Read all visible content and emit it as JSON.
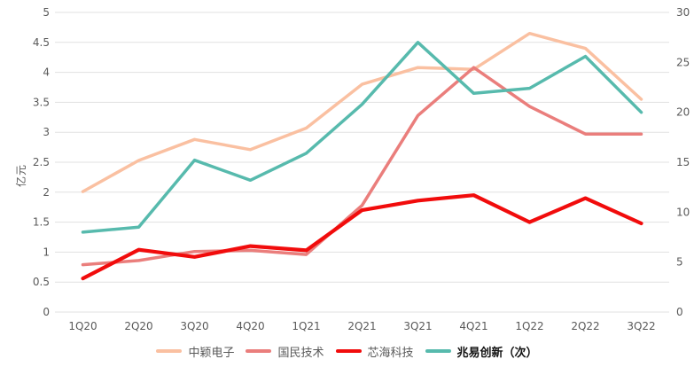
{
  "chart_data": {
    "type": "line",
    "categories": [
      "1Q20",
      "2Q20",
      "3Q20",
      "4Q20",
      "1Q21",
      "2Q21",
      "3Q21",
      "4Q21",
      "1Q22",
      "2Q22",
      "3Q22"
    ],
    "series": [
      {
        "name": "中颖电子",
        "axis": "left",
        "color": "#FAC0A1",
        "line_width": 3.5,
        "bold_legend": false,
        "values": [
          2.01,
          2.53,
          2.88,
          2.71,
          3.07,
          3.8,
          4.08,
          4.05,
          4.65,
          4.4,
          3.55
        ]
      },
      {
        "name": "国民技术",
        "axis": "left",
        "color": "#EA7E7C",
        "line_width": 3.5,
        "bold_legend": false,
        "values": [
          0.79,
          0.86,
          1.01,
          1.03,
          0.96,
          1.78,
          3.28,
          4.08,
          3.43,
          2.97,
          2.97
        ]
      },
      {
        "name": "芯海科技",
        "axis": "left",
        "color": "#F10C0C",
        "line_width": 4.2,
        "bold_legend": false,
        "values": [
          0.56,
          1.04,
          0.92,
          1.1,
          1.03,
          1.7,
          1.86,
          1.95,
          1.5,
          1.9,
          1.48
        ]
      },
      {
        "name": "兆易创新（次）",
        "axis": "right",
        "color": "#57BAAD",
        "line_width": 3.5,
        "bold_legend": true,
        "values": [
          8.0,
          8.5,
          15.2,
          13.2,
          15.9,
          20.8,
          27.0,
          21.9,
          22.4,
          25.6,
          20.0
        ]
      }
    ],
    "left_axis": {
      "label": "亿元",
      "min": 0,
      "max": 5,
      "tick_labels": [
        "5",
        "4.5",
        "4",
        "3.5",
        "3",
        "2.5",
        "2",
        "1.5",
        "1",
        "0.5",
        "0"
      ]
    },
    "right_axis": {
      "label": "",
      "min": 0,
      "max": 30,
      "tick_labels": [
        "30",
        "25",
        "20",
        "15",
        "10",
        "5",
        "0"
      ]
    },
    "grid": true,
    "legend_position": "bottom",
    "colors": {
      "background": "#ffffff",
      "gridline": "#E1E1E1",
      "axis_text": "#595959",
      "legend_text": "#595959",
      "legend_text_bold": "#111111"
    }
  }
}
